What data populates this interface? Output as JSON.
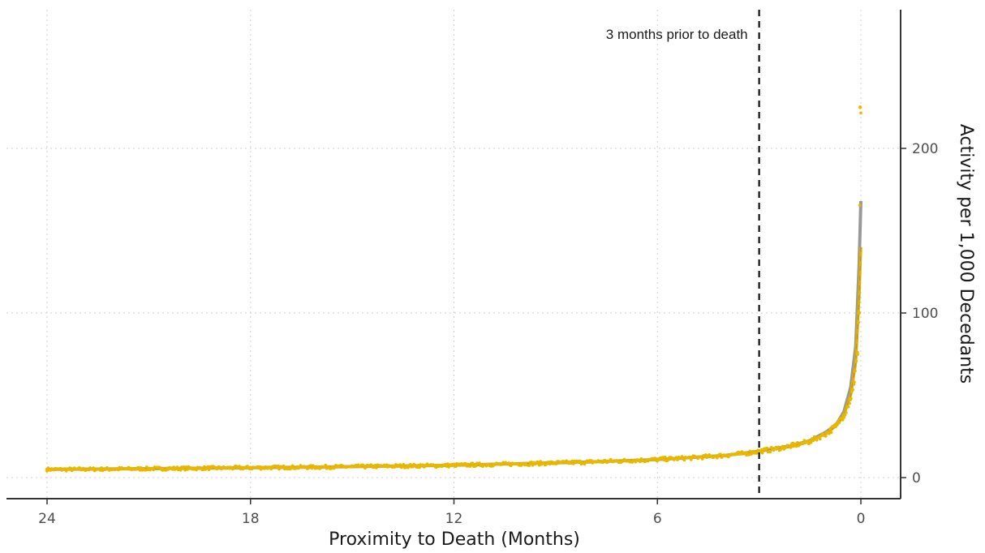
{
  "chart_data": {
    "type": "scatter",
    "title": "",
    "xlabel": "Proximity to Death (Months)",
    "ylabel": "Activity per 1,000 Decedants",
    "xlim": [
      24,
      0
    ],
    "x_reversed": true,
    "ylim": [
      0,
      280
    ],
    "x_ticks": [
      24,
      18,
      12,
      6,
      0
    ],
    "x_tick_labels": [
      "24",
      "18",
      "12",
      "6",
      "0"
    ],
    "y_ticks": [
      0,
      100,
      200
    ],
    "y_tick_labels": [
      "0",
      "100",
      "200"
    ],
    "y_axis_position": "right",
    "grid": true,
    "grid_style": "dotted",
    "legend": "none",
    "colors": {
      "points": "#E8B800",
      "fit_line": "#E0B000",
      "reference_line": "#999999",
      "vline": "#111111",
      "axis": "#333333",
      "grid": "#cfcfcf"
    },
    "vline": {
      "x": 3,
      "style": "dashed",
      "label": "3 months prior to death"
    },
    "series": [
      {
        "type": "points",
        "x": [
          24,
          23,
          22,
          21,
          20,
          19,
          18,
          17,
          16,
          15,
          14,
          13,
          12,
          11,
          10,
          9,
          8,
          7,
          6,
          5,
          4,
          3.5,
          3,
          2.5,
          2,
          1.5,
          1,
          0.75,
          0.5,
          0.3,
          0.2,
          0.1,
          0.05,
          0.02
        ],
        "values": [
          5,
          5,
          5.2,
          5.4,
          5.6,
          5.8,
          6,
          6.2,
          6.4,
          6.6,
          6.9,
          7.2,
          7.5,
          7.9,
          8.4,
          8.9,
          9.5,
          10.2,
          11,
          12,
          13.5,
          14.5,
          16,
          17.5,
          19.5,
          22,
          27,
          31,
          38,
          48,
          58,
          75,
          100,
          225
        ]
      },
      {
        "type": "line",
        "role": "fit",
        "x": [
          24,
          20,
          16,
          12,
          8,
          6,
          4,
          3,
          2,
          1.5,
          1,
          0.7,
          0.5,
          0.3,
          0.15,
          0.05,
          0
        ],
        "values": [
          5,
          5.6,
          6.4,
          7.5,
          9.5,
          11,
          13.5,
          16,
          19,
          22,
          27,
          32,
          38,
          50,
          70,
          110,
          140
        ]
      },
      {
        "type": "line",
        "role": "reference",
        "x": [
          24,
          20,
          16,
          12,
          8,
          6,
          4,
          3,
          2,
          1.5,
          1,
          0.7,
          0.5,
          0.3,
          0.15,
          0.05,
          0
        ],
        "values": [
          5,
          5.6,
          6.4,
          7.5,
          9.5,
          11,
          13.5,
          16,
          19.5,
          22.5,
          28,
          33,
          40,
          55,
          80,
          130,
          168
        ]
      }
    ]
  }
}
